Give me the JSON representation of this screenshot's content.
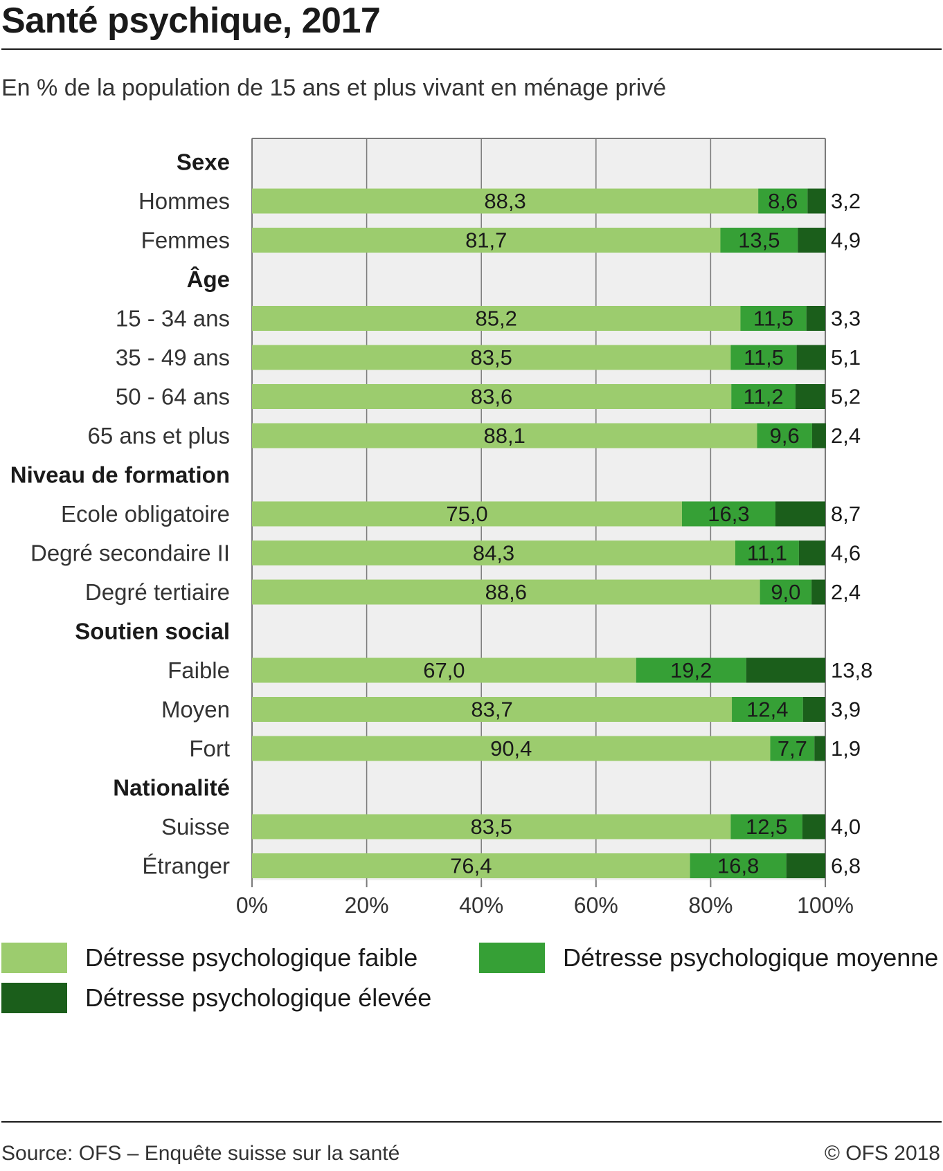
{
  "title": "Santé psychique, 2017",
  "subtitle": "En % de la population de 15 ans et plus vivant en ménage privé",
  "source": "Source: OFS – Enquête suisse sur la santé",
  "copyright": "© OFS 2018",
  "colors": {
    "faible": "#9ccc6e",
    "moyenne": "#36a036",
    "elevee": "#1b5e1b",
    "plot_bg": "#efefef",
    "grid": "#7a7a7a"
  },
  "chart_data": {
    "type": "bar",
    "orientation": "horizontal",
    "stacked": true,
    "xlim": [
      0,
      100
    ],
    "x_ticks": [
      "0%",
      "20%",
      "40%",
      "60%",
      "80%",
      "100%"
    ],
    "grid": true,
    "legend_position": "bottom",
    "series": [
      {
        "name": "Détresse psychologique faible",
        "color_key": "faible"
      },
      {
        "name": "Détresse psychologique moyenne",
        "color_key": "moyenne"
      },
      {
        "name": "Détresse psychologique élevée",
        "color_key": "elevee"
      }
    ],
    "groups": [
      {
        "name": "Sexe",
        "rows": [
          {
            "label": "Hommes",
            "values": [
              88.3,
              8.6,
              3.2
            ],
            "labels": [
              "88,3",
              "8,6",
              "3,2"
            ]
          },
          {
            "label": "Femmes",
            "values": [
              81.7,
              13.5,
              4.9
            ],
            "labels": [
              "81,7",
              "13,5",
              "4,9"
            ]
          }
        ]
      },
      {
        "name": "Âge",
        "rows": [
          {
            "label": "15 - 34 ans",
            "values": [
              85.2,
              11.5,
              3.3
            ],
            "labels": [
              "85,2",
              "11,5",
              "3,3"
            ]
          },
          {
            "label": "35 - 49 ans",
            "values": [
              83.5,
              11.5,
              5.1
            ],
            "labels": [
              "83,5",
              "11,5",
              "5,1"
            ]
          },
          {
            "label": "50 - 64 ans",
            "values": [
              83.6,
              11.2,
              5.2
            ],
            "labels": [
              "83,6",
              "11,2",
              "5,2"
            ]
          },
          {
            "label": "65 ans et plus",
            "values": [
              88.1,
              9.6,
              2.4
            ],
            "labels": [
              "88,1",
              "9,6",
              "2,4"
            ]
          }
        ]
      },
      {
        "name": "Niveau de formation",
        "rows": [
          {
            "label": "Ecole obligatoire",
            "values": [
              75.0,
              16.3,
              8.7
            ],
            "labels": [
              "75,0",
              "16,3",
              "8,7"
            ]
          },
          {
            "label": "Degré secondaire II",
            "values": [
              84.3,
              11.1,
              4.6
            ],
            "labels": [
              "84,3",
              "11,1",
              "4,6"
            ]
          },
          {
            "label": "Degré tertiaire",
            "values": [
              88.6,
              9.0,
              2.4
            ],
            "labels": [
              "88,6",
              "9,0",
              "2,4"
            ]
          }
        ]
      },
      {
        "name": "Soutien social",
        "rows": [
          {
            "label": "Faible",
            "values": [
              67.0,
              19.2,
              13.8
            ],
            "labels": [
              "67,0",
              "19,2",
              "13,8"
            ]
          },
          {
            "label": "Moyen",
            "values": [
              83.7,
              12.4,
              3.9
            ],
            "labels": [
              "83,7",
              "12,4",
              "3,9"
            ]
          },
          {
            "label": "Fort",
            "values": [
              90.4,
              7.7,
              1.9
            ],
            "labels": [
              "90,4",
              "7,7",
              "1,9"
            ]
          }
        ]
      },
      {
        "name": "Nationalité",
        "rows": [
          {
            "label": "Suisse",
            "values": [
              83.5,
              12.5,
              4.0
            ],
            "labels": [
              "83,5",
              "12,5",
              "4,0"
            ]
          },
          {
            "label": "Étranger",
            "values": [
              76.4,
              16.8,
              6.8
            ],
            "labels": [
              "76,4",
              "16,8",
              "6,8"
            ]
          }
        ]
      }
    ]
  }
}
